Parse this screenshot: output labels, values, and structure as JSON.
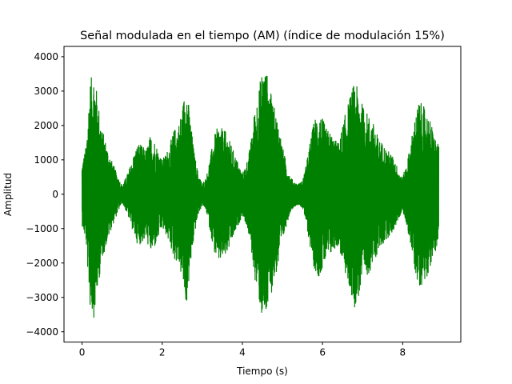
{
  "chart_data": {
    "type": "line",
    "title": "Señal modulada en el tiempo (AM) (índice de modulación 15%)",
    "xlabel": "Tiempo (s)",
    "ylabel": "Amplitud",
    "xlim": [
      -0.45,
      9.45
    ],
    "ylim": [
      -4300,
      4300
    ],
    "x_ticks": [
      0,
      2,
      4,
      6,
      8
    ],
    "y_ticks": [
      -4000,
      -3000,
      -2000,
      -1000,
      0,
      1000,
      2000,
      3000,
      4000
    ],
    "x_tick_labels": [
      "0",
      "2",
      "4",
      "6",
      "8"
    ],
    "y_tick_labels": [
      "−4000",
      "−3000",
      "−2000",
      "−1000",
      "0",
      "1000",
      "2000",
      "3000",
      "4000"
    ],
    "grid": false,
    "line_color": "#008000",
    "series": [
      {
        "x": [
          0.0,
          0.1,
          0.2,
          0.3,
          0.4,
          0.5,
          0.6,
          0.7,
          0.8,
          0.9,
          1.0,
          1.1,
          1.2,
          1.3,
          1.4,
          1.5,
          1.6,
          1.7,
          1.8,
          1.9,
          2.0,
          2.1,
          2.2,
          2.3,
          2.4,
          2.5,
          2.6,
          2.7,
          2.8,
          2.9,
          3.0,
          3.1,
          3.2,
          3.3,
          3.4,
          3.5,
          3.6,
          3.7,
          3.8,
          3.9,
          4.0,
          4.1,
          4.2,
          4.3,
          4.4,
          4.5,
          4.6,
          4.7,
          4.8,
          4.9,
          5.0,
          5.1,
          5.2,
          5.3,
          5.4,
          5.5,
          5.6,
          5.7,
          5.8,
          5.9,
          6.0,
          6.1,
          6.2,
          6.3,
          6.4,
          6.5,
          6.6,
          6.7,
          6.8,
          6.9,
          7.0,
          7.1,
          7.2,
          7.3,
          7.4,
          7.5,
          7.6,
          7.7,
          7.8,
          7.9,
          8.0,
          8.1,
          8.2,
          8.3,
          8.4,
          8.5,
          8.6,
          8.7,
          8.8,
          8.9
        ],
        "envelope": [
          900,
          1400,
          3300,
          3600,
          2700,
          1900,
          1500,
          1100,
          800,
          500,
          250,
          500,
          800,
          1200,
          1500,
          1400,
          1300,
          1700,
          1600,
          1300,
          1000,
          1200,
          1500,
          1900,
          2000,
          2500,
          3300,
          2200,
          1200,
          600,
          300,
          500,
          1100,
          1700,
          2000,
          1900,
          1800,
          1500,
          1200,
          900,
          600,
          900,
          1400,
          2400,
          3000,
          3700,
          3600,
          3000,
          2500,
          2100,
          1400,
          900,
          500,
          350,
          300,
          400,
          900,
          1600,
          2200,
          2400,
          2200,
          1900,
          1800,
          1600,
          1500,
          2000,
          2500,
          2900,
          3300,
          3000,
          2600,
          2400,
          2200,
          2000,
          1600,
          1500,
          1300,
          1200,
          1000,
          700,
          500,
          900,
          1500,
          2200,
          2700,
          2600,
          2400,
          2100,
          1700,
          1400
        ]
      }
    ]
  }
}
